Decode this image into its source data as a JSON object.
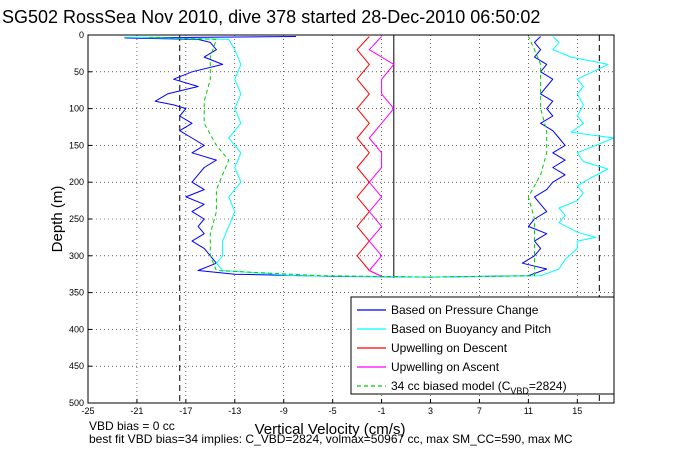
{
  "chart_data": {
    "type": "line",
    "title": "SG502 RossSea Nov 2010, dive 378 started 28-Dec-2010 06:50:02",
    "xlabel": "Vertical Velocity (cm/s)",
    "ylabel": "Depth (m)",
    "xlim": [
      -25,
      18
    ],
    "ylim": [
      0,
      500
    ],
    "y_reversed": true,
    "x_ticks": [
      -25,
      -21,
      -17,
      -13,
      -9,
      -5,
      -1,
      3,
      7,
      11,
      15
    ],
    "y_ticks": [
      0,
      50,
      100,
      150,
      200,
      250,
      300,
      350,
      400,
      450,
      500
    ],
    "grid": "dotted",
    "legend_position": "bottom-right",
    "reference_lines": [
      {
        "x": -17.5,
        "style": "dashed"
      },
      {
        "x": 16.8,
        "style": "dashed"
      },
      {
        "x": 0,
        "style": "solid",
        "depth_range": [
          0,
          330
        ]
      }
    ],
    "series": [
      {
        "name": "Based on Pressure Change",
        "color": "#0000ff",
        "style": "solid",
        "points": [
          [
            -8,
            2
          ],
          [
            -22,
            4
          ],
          [
            -16,
            6
          ],
          [
            -15,
            10
          ],
          [
            -14.5,
            20
          ],
          [
            -15.5,
            30
          ],
          [
            -14,
            40
          ],
          [
            -16.5,
            50
          ],
          [
            -18,
            60
          ],
          [
            -16,
            70
          ],
          [
            -18.5,
            80
          ],
          [
            -19.5,
            90
          ],
          [
            -18,
            95
          ],
          [
            -17,
            100
          ],
          [
            -17.5,
            110
          ],
          [
            -16.5,
            120
          ],
          [
            -17.5,
            130
          ],
          [
            -16.5,
            140
          ],
          [
            -15.5,
            150
          ],
          [
            -16.5,
            160
          ],
          [
            -14.5,
            170
          ],
          [
            -15.5,
            180
          ],
          [
            -16,
            190
          ],
          [
            -16.5,
            200
          ],
          [
            -15.5,
            210
          ],
          [
            -17,
            220
          ],
          [
            -15.5,
            230
          ],
          [
            -16.5,
            240
          ],
          [
            -15.5,
            250
          ],
          [
            -16,
            260
          ],
          [
            -15.5,
            270
          ],
          [
            -16.5,
            280
          ],
          [
            -15.5,
            290
          ],
          [
            -15,
            300
          ],
          [
            -14.5,
            310
          ],
          [
            -16,
            320
          ],
          [
            -13,
            325
          ],
          [
            -5,
            328
          ],
          [
            3,
            329
          ],
          [
            11,
            327
          ],
          [
            12.5,
            318
          ],
          [
            10.5,
            310
          ],
          [
            11.5,
            300
          ],
          [
            12,
            290
          ],
          [
            11.5,
            280
          ],
          [
            12.5,
            270
          ],
          [
            11,
            260
          ],
          [
            11.5,
            250
          ],
          [
            12.5,
            240
          ],
          [
            12,
            230
          ],
          [
            11.5,
            220
          ],
          [
            12.5,
            210
          ],
          [
            13,
            200
          ],
          [
            14,
            190
          ],
          [
            13,
            180
          ],
          [
            14,
            170
          ],
          [
            13,
            160
          ],
          [
            14,
            150
          ],
          [
            13.5,
            140
          ],
          [
            13,
            130
          ],
          [
            12,
            120
          ],
          [
            13,
            110
          ],
          [
            12.5,
            100
          ],
          [
            13,
            90
          ],
          [
            12,
            80
          ],
          [
            12.5,
            70
          ],
          [
            13,
            60
          ],
          [
            12,
            50
          ],
          [
            12.5,
            40
          ],
          [
            11.5,
            30
          ],
          [
            12,
            20
          ],
          [
            11.5,
            10
          ],
          [
            12,
            2
          ]
        ]
      },
      {
        "name": "Based on Buoyancy and Pitch",
        "color": "#00ffff",
        "style": "solid",
        "points": [
          [
            -22,
            3
          ],
          [
            -13.5,
            6
          ],
          [
            -13,
            20
          ],
          [
            -12.5,
            40
          ],
          [
            -13,
            60
          ],
          [
            -12.5,
            80
          ],
          [
            -13,
            100
          ],
          [
            -12.5,
            120
          ],
          [
            -13.5,
            140
          ],
          [
            -12.5,
            160
          ],
          [
            -13,
            180
          ],
          [
            -12.5,
            200
          ],
          [
            -13.5,
            220
          ],
          [
            -13,
            240
          ],
          [
            -13.5,
            260
          ],
          [
            -14,
            280
          ],
          [
            -14,
            300
          ],
          [
            -14.5,
            310
          ],
          [
            -14,
            320
          ],
          [
            -8,
            327
          ],
          [
            3,
            329
          ],
          [
            12,
            327
          ],
          [
            13.5,
            318
          ],
          [
            14,
            305
          ],
          [
            15,
            290
          ],
          [
            15,
            280
          ],
          [
            16.5,
            275
          ],
          [
            15,
            268
          ],
          [
            13.5,
            255
          ],
          [
            14,
            245
          ],
          [
            13.5,
            235
          ],
          [
            15,
            225
          ],
          [
            15.5,
            215
          ],
          [
            15,
            205
          ],
          [
            16,
            195
          ],
          [
            17.5,
            182
          ],
          [
            15.5,
            172
          ],
          [
            15,
            160
          ],
          [
            18,
            140
          ],
          [
            14.5,
            132
          ],
          [
            15.5,
            120
          ],
          [
            15,
            110
          ],
          [
            15.5,
            95
          ],
          [
            15,
            80
          ],
          [
            15.5,
            70
          ],
          [
            15,
            60
          ],
          [
            17.5,
            40
          ],
          [
            14.5,
            30
          ],
          [
            13,
            20
          ],
          [
            13.5,
            10
          ],
          [
            13,
            2
          ]
        ]
      },
      {
        "name": "Upwelling on Descent",
        "color": "#ff0000",
        "style": "solid",
        "points": [
          [
            -2,
            2
          ],
          [
            -3,
            20
          ],
          [
            -2,
            40
          ],
          [
            -3,
            60
          ],
          [
            -2,
            80
          ],
          [
            -3,
            100
          ],
          [
            -2,
            120
          ],
          [
            -3,
            140
          ],
          [
            -2,
            160
          ],
          [
            -3,
            180
          ],
          [
            -2,
            200
          ],
          [
            -3,
            220
          ],
          [
            -2,
            240
          ],
          [
            -3,
            260
          ],
          [
            -2,
            280
          ],
          [
            -3,
            300
          ],
          [
            -2,
            320
          ],
          [
            -1,
            328
          ]
        ]
      },
      {
        "name": "Upwelling on Ascent",
        "color": "#ff00ff",
        "style": "solid",
        "points": [
          [
            -1,
            2
          ],
          [
            -2,
            20
          ],
          [
            0,
            40
          ],
          [
            -1,
            60
          ],
          [
            -1,
            80
          ],
          [
            0,
            100
          ],
          [
            -1,
            120
          ],
          [
            -2,
            140
          ],
          [
            -1,
            160
          ],
          [
            -1,
            180
          ],
          [
            -2,
            200
          ],
          [
            -1,
            220
          ],
          [
            -2,
            240
          ],
          [
            -1,
            260
          ],
          [
            -2,
            280
          ],
          [
            -1,
            300
          ],
          [
            -2,
            320
          ],
          [
            -1,
            328
          ]
        ]
      },
      {
        "name": "34 cc biased model (C_VBD=2824)",
        "color": "#00cc00",
        "style": "dashed",
        "points": [
          [
            -20,
            3
          ],
          [
            -14.5,
            6
          ],
          [
            -15,
            30
          ],
          [
            -15,
            60
          ],
          [
            -15.5,
            90
          ],
          [
            -15.5,
            120
          ],
          [
            -14.5,
            150
          ],
          [
            -13.5,
            170
          ],
          [
            -14,
            190
          ],
          [
            -14.5,
            210
          ],
          [
            -14.5,
            240
          ],
          [
            -15,
            270
          ],
          [
            -15,
            300
          ],
          [
            -14.5,
            320
          ],
          [
            -6,
            327
          ],
          [
            3,
            329
          ],
          [
            11.5,
            327
          ],
          [
            11.5,
            310
          ],
          [
            11.5,
            280
          ],
          [
            11.5,
            250
          ],
          [
            11,
            220
          ],
          [
            12,
            190
          ],
          [
            12.5,
            160
          ],
          [
            12.5,
            130
          ],
          [
            12,
            100
          ],
          [
            12,
            70
          ],
          [
            12,
            40
          ],
          [
            11.5,
            20
          ],
          [
            11,
            2
          ]
        ]
      }
    ]
  },
  "legend": {
    "items": [
      "Based on Pressure Change",
      "Based on Buoyancy and Pitch",
      "Upwelling on Descent",
      "Upwelling on Ascent",
      "34 cc biased model (C"
    ],
    "vbd_subscript": "VBD",
    "vbd_value": "=2824)"
  },
  "captions": {
    "line1": "VBD bias = 0 cc",
    "line2": "best fit VBD bias=34 implies: C_VBD=2824, volmax=50967 cc, max SM_CC=590, max MC"
  }
}
